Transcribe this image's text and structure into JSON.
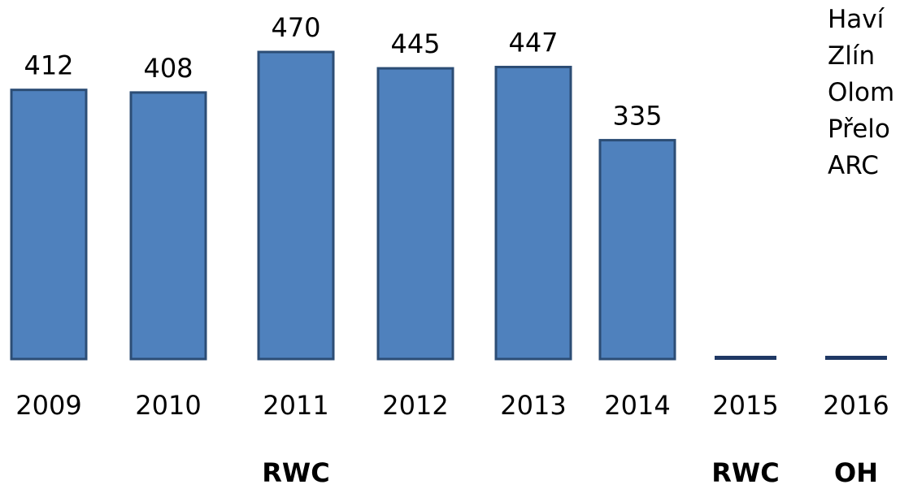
{
  "chart_data": {
    "type": "bar",
    "categories": [
      "2009",
      "2010",
      "2011",
      "2012",
      "2013",
      "2014",
      "2015",
      "2016"
    ],
    "values": [
      412,
      408,
      470,
      445,
      447,
      335,
      0,
      0
    ],
    "value_labels": [
      "412",
      "408",
      "470",
      "445",
      "447",
      "335",
      "",
      ""
    ],
    "event_labels": [
      "",
      "",
      "RWC",
      "",
      "",
      "",
      "RWC",
      "OH"
    ],
    "ylim": [
      0,
      470
    ],
    "grid": false,
    "legend_position": "top-right",
    "colors": {
      "bar_fill": "#4f81bd",
      "bar_stroke": "#2c4d75",
      "baseline_mark": "#1f3864"
    }
  },
  "legend": {
    "items": [
      "Haví",
      "Zlín",
      "Olom",
      "Přelo",
      "ARC"
    ]
  }
}
